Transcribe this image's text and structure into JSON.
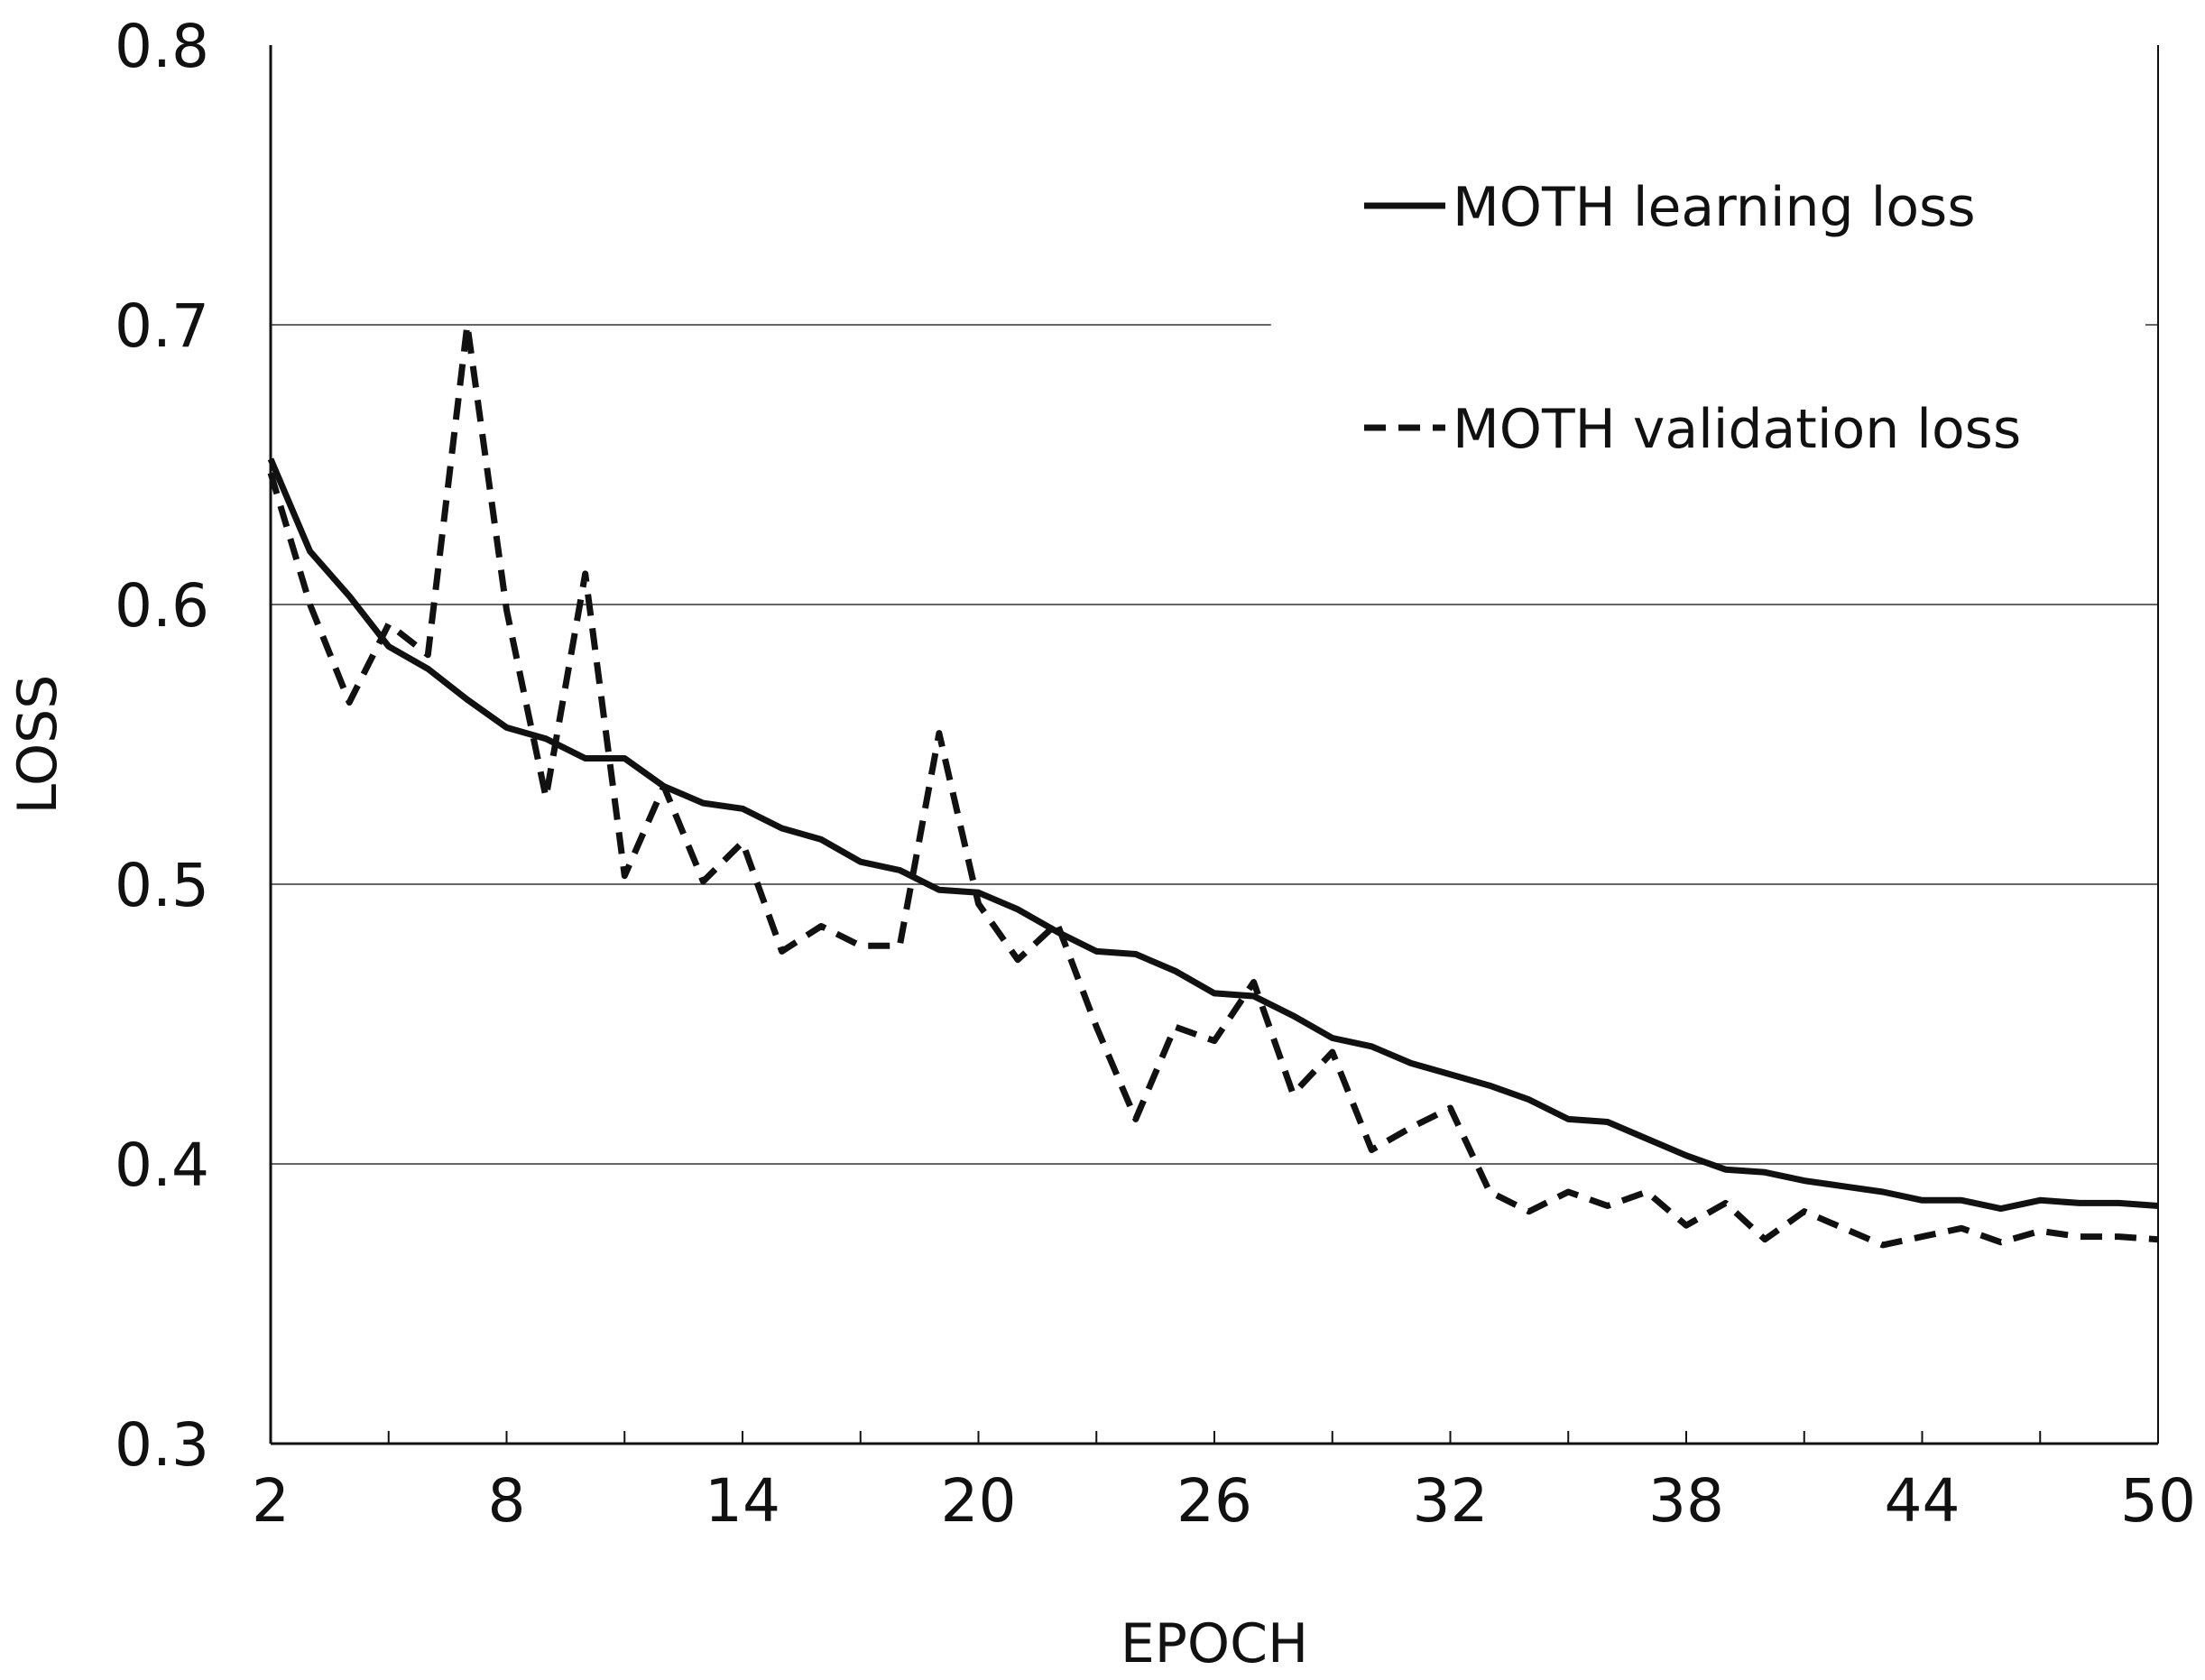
{
  "chart_data": {
    "type": "line",
    "title": "",
    "xlabel": "EPOCH",
    "ylabel": "LOSS",
    "xlim": [
      2,
      50
    ],
    "ylim": [
      0.3,
      0.8
    ],
    "x_ticks": [
      "2",
      "8",
      "14",
      "20",
      "26",
      "32",
      "38",
      "44",
      "50"
    ],
    "y_ticks": [
      "0.3",
      "0.4",
      "0.5",
      "0.6",
      "0.7",
      "0.8"
    ],
    "grid": "horizontal",
    "legend_position": "top-right",
    "x": [
      2,
      3,
      4,
      5,
      6,
      7,
      8,
      9,
      10,
      11,
      12,
      13,
      14,
      15,
      16,
      17,
      18,
      19,
      20,
      21,
      22,
      23,
      24,
      25,
      26,
      27,
      28,
      29,
      30,
      31,
      32,
      33,
      34,
      35,
      36,
      37,
      38,
      39,
      40,
      41,
      42,
      43,
      44,
      45,
      46,
      47,
      48,
      49,
      50
    ],
    "series": [
      {
        "name": "MOTH learning loss",
        "style": "solid",
        "values": [
          0.652,
          0.619,
          0.603,
          0.585,
          0.577,
          0.566,
          0.556,
          0.552,
          0.545,
          0.545,
          0.535,
          0.529,
          0.527,
          0.52,
          0.516,
          0.508,
          0.505,
          0.498,
          0.497,
          0.491,
          0.483,
          0.476,
          0.475,
          0.469,
          0.461,
          0.46,
          0.453,
          0.445,
          0.442,
          0.436,
          0.432,
          0.428,
          0.423,
          0.416,
          0.415,
          0.409,
          0.403,
          0.398,
          0.397,
          0.394,
          0.392,
          0.39,
          0.387,
          0.387,
          0.384,
          0.387,
          0.386,
          0.386,
          0.385
        ]
      },
      {
        "name": "MOTH validation loss",
        "style": "dashed",
        "values": [
          0.647,
          0.6,
          0.565,
          0.593,
          0.582,
          0.7,
          0.598,
          0.531,
          0.611,
          0.503,
          0.535,
          0.501,
          0.515,
          0.476,
          0.485,
          0.478,
          0.478,
          0.554,
          0.493,
          0.473,
          0.486,
          0.449,
          0.416,
          0.449,
          0.444,
          0.465,
          0.425,
          0.44,
          0.405,
          0.413,
          0.42,
          0.39,
          0.383,
          0.39,
          0.385,
          0.39,
          0.378,
          0.386,
          0.373,
          0.383,
          0.377,
          0.371,
          0.374,
          0.377,
          0.372,
          0.376,
          0.374,
          0.374,
          0.373
        ]
      }
    ]
  }
}
